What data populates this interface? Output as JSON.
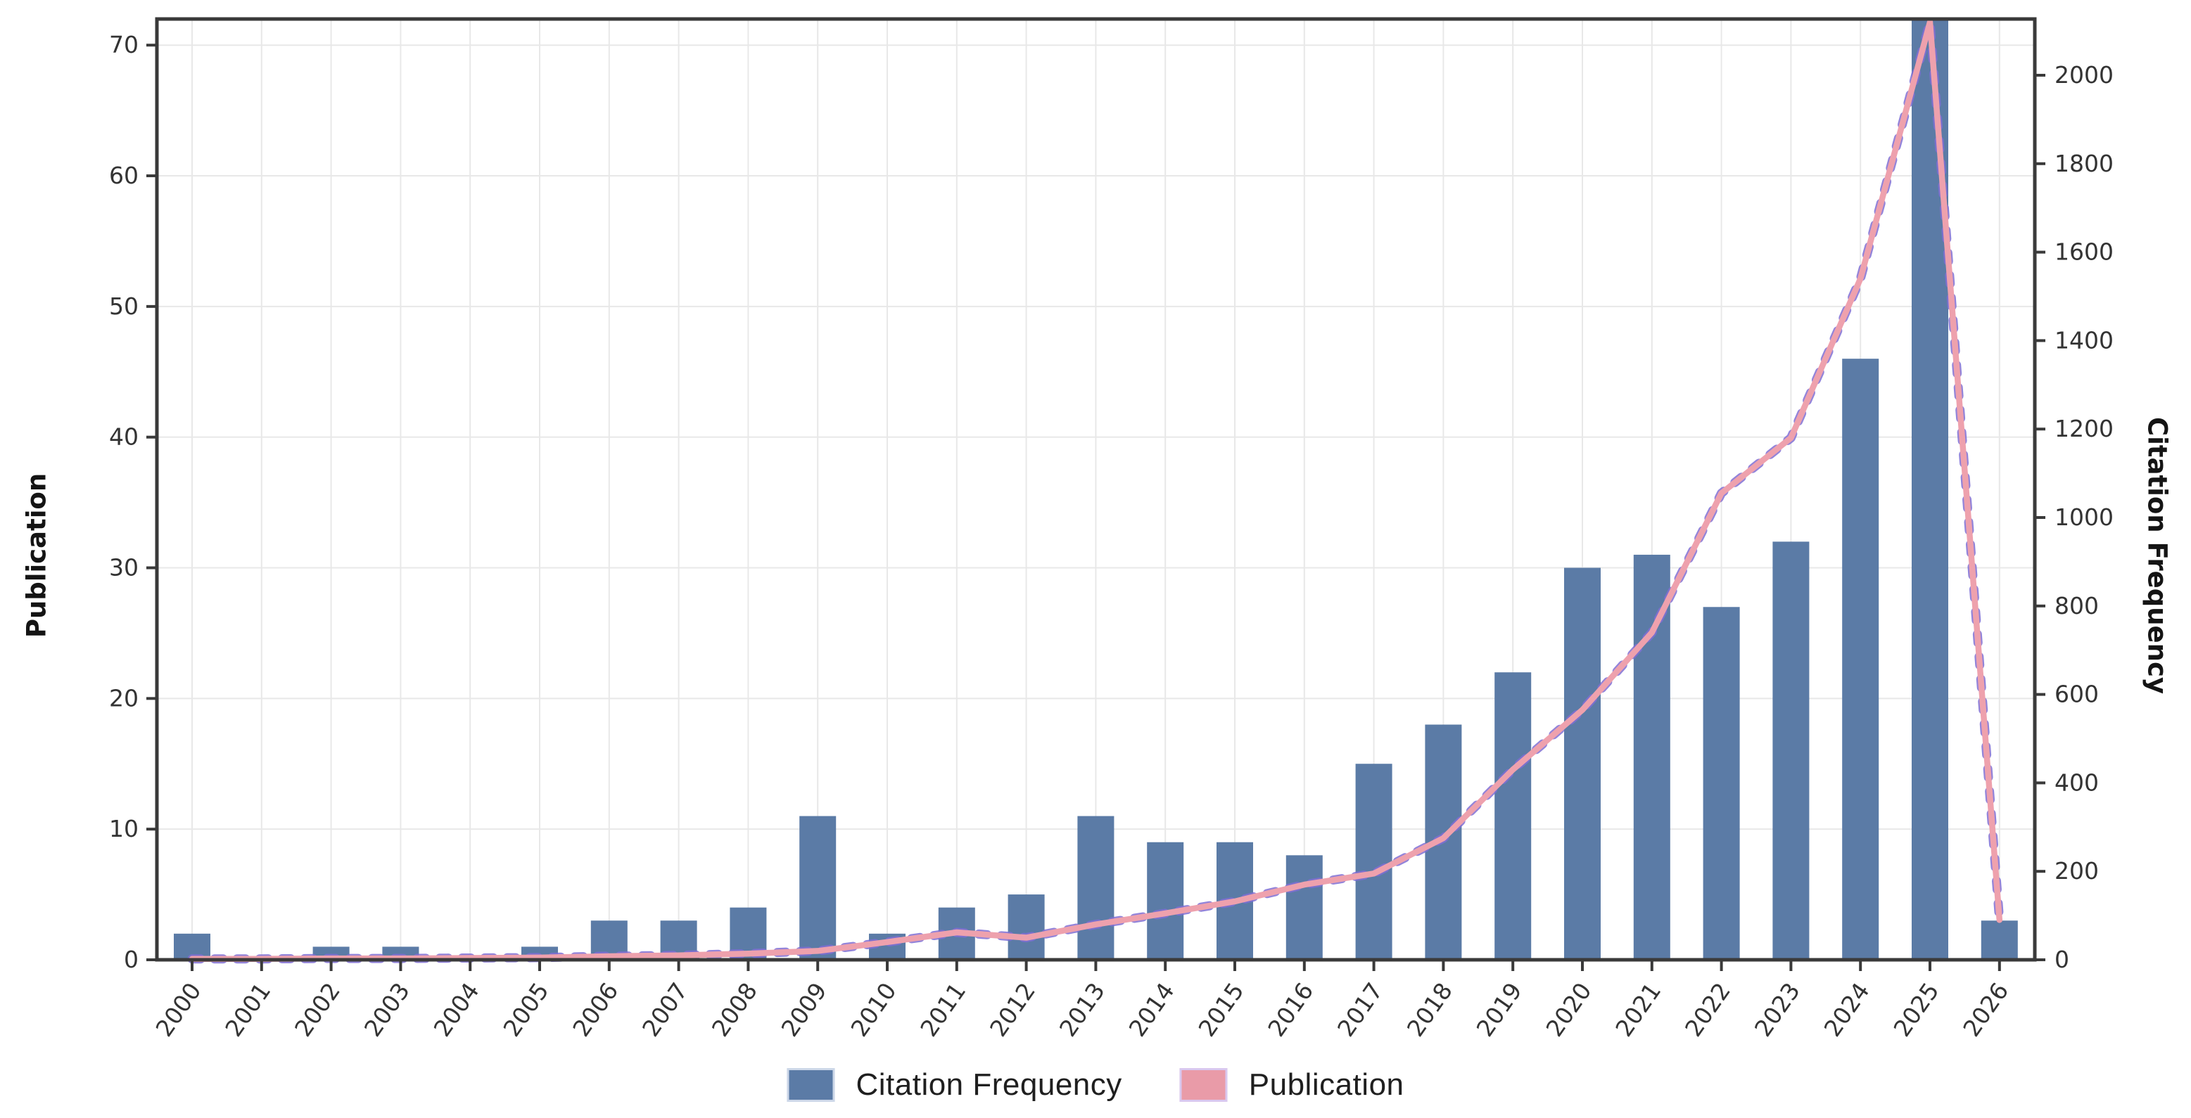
{
  "chart_data": {
    "type": "bar+line",
    "categories": [
      "2000",
      "2001",
      "2002",
      "2003",
      "2004",
      "2005",
      "2006",
      "2007",
      "2008",
      "2009",
      "2010",
      "2011",
      "2012",
      "2013",
      "2014",
      "2015",
      "2016",
      "2017",
      "2018",
      "2019",
      "2020",
      "2021",
      "2022",
      "2023",
      "2024",
      "2025",
      "2026"
    ],
    "series": [
      {
        "name": "Citation Frequency",
        "type": "bar",
        "axis": "left",
        "color": "#5b7ba6",
        "values": [
          2,
          0,
          1,
          1,
          0,
          1,
          3,
          3,
          4,
          11,
          2,
          4,
          5,
          11,
          9,
          9,
          8,
          15,
          18,
          22,
          30,
          31,
          27,
          32,
          46,
          72,
          3
        ]
      },
      {
        "name": "Publication",
        "type": "line",
        "axis": "right",
        "color": "#eea1ad",
        "dash_overlay_color": "#7f6fd4",
        "values": [
          2,
          2,
          3,
          3,
          4,
          5,
          8,
          10,
          14,
          20,
          40,
          62,
          50,
          80,
          105,
          132,
          170,
          195,
          275,
          430,
          565,
          740,
          1055,
          1180,
          1540,
          2120,
          90
        ]
      }
    ],
    "left_axis": {
      "title": "Publication",
      "ticks": [
        "0",
        "10",
        "20",
        "30",
        "40",
        "50",
        "60",
        "70"
      ],
      "range": [
        0,
        72
      ]
    },
    "right_axis": {
      "title": "Citation Frequency",
      "ticks": [
        "0",
        "200",
        "400",
        "600",
        "800",
        "1000",
        "1200",
        "1400",
        "1600",
        "1800",
        "2000"
      ],
      "range": [
        0,
        2127
      ]
    },
    "x_axis": {
      "label_rotation_deg": -55
    },
    "grid": {
      "horizontal_step_left_axis": 10,
      "vertical": "one line per year",
      "color": "#e8e8e8"
    },
    "legend": {
      "position": "bottom-center",
      "entries": [
        {
          "label": "Citation Frequency",
          "swatch_color": "#5b7ba6"
        },
        {
          "label": "Publication",
          "swatch_color": "#e99ba8",
          "swatch_border": "#d9c8ef"
        }
      ]
    },
    "note_2025_bar": "bar reaches top of plot area (visually clipped at 72)"
  },
  "colors": {
    "background": "#ffffff",
    "bar": "#5b7ba6",
    "line_pink": "#eea1ad",
    "line_dash_overlay": "#7f6fd4",
    "grid": "#e8e8e8",
    "spine": "#3a3a3a",
    "tick_label": "#333333",
    "axis_title": "#141414",
    "legend_text": "#1f1f1f"
  }
}
